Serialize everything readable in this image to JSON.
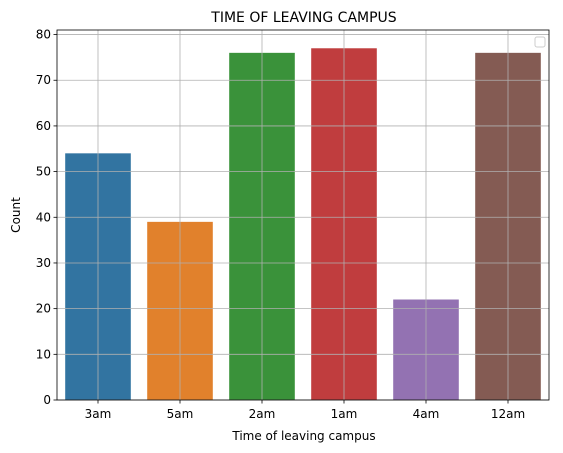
{
  "chart_data": {
    "type": "bar",
    "title": "TIME OF LEAVING CAMPUS",
    "xlabel": "Time of leaving campus",
    "ylabel": "Count",
    "categories": [
      "3am",
      "5am",
      "2am",
      "1am",
      "4am",
      "12am"
    ],
    "values": [
      54,
      39,
      76,
      77,
      22,
      76
    ],
    "colors": [
      "#3274a1",
      "#e1812c",
      "#3a923a",
      "#c03d3e",
      "#9372b2",
      "#845b53"
    ],
    "ylim": [
      0,
      81
    ],
    "yticks": [
      0,
      10,
      20,
      30,
      40,
      50,
      60,
      70,
      80
    ],
    "grid": true,
    "legend": "top-right (empty)"
  }
}
